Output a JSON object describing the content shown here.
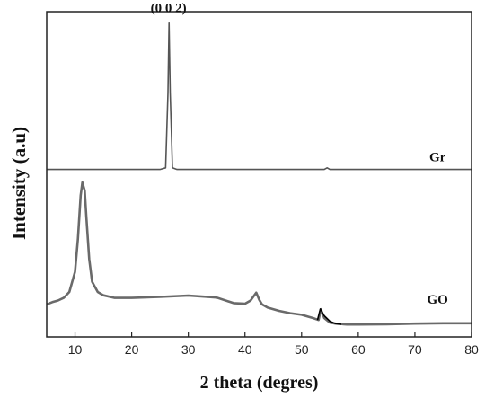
{
  "chart_data": {
    "type": "line",
    "title": "",
    "xlabel": "2 theta (degres)",
    "ylabel": "Intensity (a.u)",
    "xlim": [
      5,
      80
    ],
    "xticks": [
      10,
      20,
      30,
      40,
      50,
      60,
      70,
      80
    ],
    "ylim": [
      0,
      100
    ],
    "grid": false,
    "legend": "none",
    "annotations": [
      {
        "text": "(0 0 2)",
        "x": 26.5
      },
      {
        "text": "Gr",
        "x": 74
      },
      {
        "text": "GO",
        "x": 74
      }
    ],
    "series": [
      {
        "color": "#555555",
        "x": [
          5,
          20,
          25,
          26.0,
          26.4,
          26.6,
          26.8,
          27.2,
          28,
          40,
          54,
          54.5,
          55,
          60,
          80
        ],
        "y": [
          51.5,
          51.5,
          51.5,
          52.0,
          75,
          96.5,
          75,
          52.0,
          51.5,
          51.5,
          51.5,
          52.0,
          51.5,
          51.5,
          51.5
        ]
      },
      {
        "color": "#6a6a6a",
        "x": [
          5,
          6,
          7,
          8,
          9,
          10,
          10.5,
          11,
          11.3,
          11.7,
          12,
          12.5,
          13,
          14,
          15,
          17,
          20,
          25,
          30,
          35,
          38,
          40,
          41,
          42,
          42.5,
          43,
          44,
          46,
          48,
          50,
          52,
          53,
          53.4,
          54,
          55,
          56,
          58,
          60,
          65,
          70,
          75,
          80
        ],
        "y": [
          10,
          10.7,
          11.2,
          12,
          13.8,
          20,
          30,
          43.5,
          47.5,
          45,
          37,
          24,
          17,
          13.8,
          12.8,
          12,
          12,
          12.3,
          12.7,
          12.1,
          10.4,
          10.2,
          11.2,
          13.6,
          11.5,
          10,
          9,
          8,
          7.3,
          6.8,
          5.8,
          5.2,
          8.5,
          5.8,
          4.4,
          4.1,
          3.8,
          3.8,
          3.9,
          4.1,
          4.2,
          4.2
        ]
      },
      {
        "color": "#000000",
        "x": [
          52.8,
          53.0,
          53.3,
          54,
          55,
          56,
          57
        ],
        "y": [
          5.2,
          6.5,
          8.6,
          6.5,
          4.8,
          4.1,
          3.9
        ]
      }
    ]
  }
}
